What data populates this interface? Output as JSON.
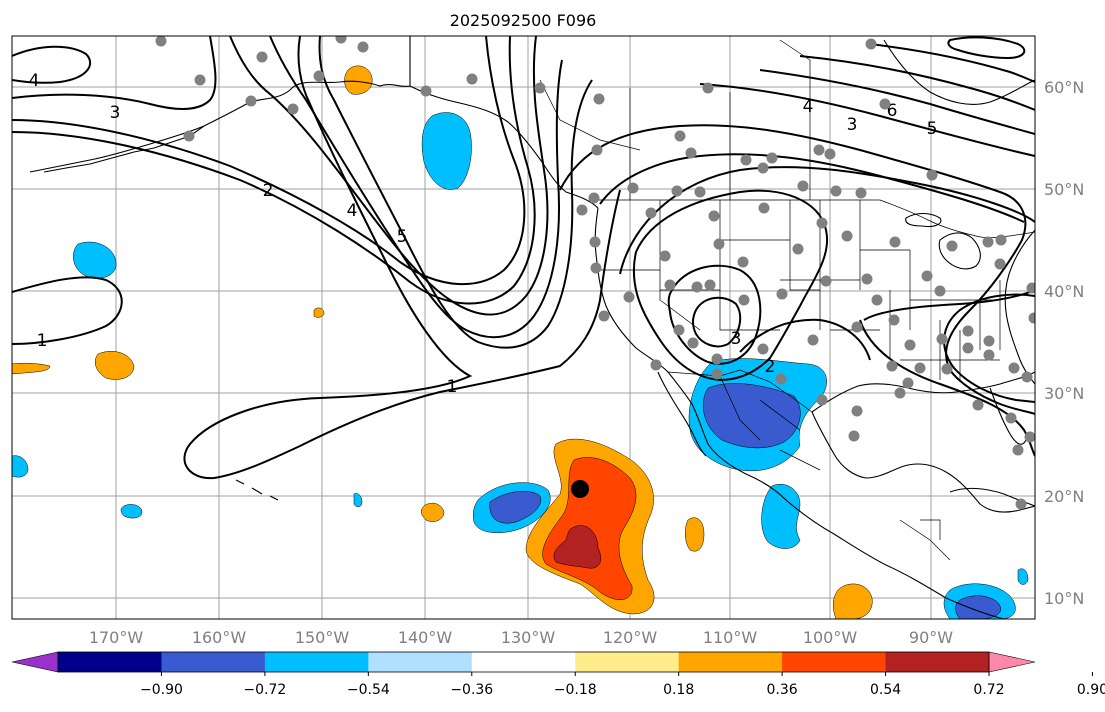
{
  "title": "2025092500 F096",
  "map": {
    "lon_ticks": [
      "170°W",
      "160°W",
      "150°W",
      "140°W",
      "130°W",
      "120°W",
      "110°W",
      "100°W",
      "90°W"
    ],
    "lat_ticks": [
      "60°N",
      "50°N",
      "40°N",
      "30°N",
      "20°N",
      "10°N"
    ],
    "contour_labels": [
      "4",
      "3",
      "2",
      "4",
      "5",
      "1",
      "1",
      "2",
      "3",
      "4",
      "6",
      "3",
      "5"
    ]
  },
  "colorbar": {
    "tick_labels": [
      "−0.90",
      "−0.72",
      "−0.54",
      "−0.36",
      "−0.18",
      "0.18",
      "0.36",
      "0.54",
      "0.72",
      "0.90"
    ],
    "colors": [
      "#9932cc",
      "#00008b",
      "#3a5bd0",
      "#00bfff",
      "#b0e0ff",
      "#ffffff",
      "#ffec8b",
      "#ffa500",
      "#ff4500",
      "#b22222",
      "#ff88aa"
    ]
  },
  "fill_colors": {
    "neg_light": "#00bfff",
    "neg_dark": "#3a5bd0",
    "pos_light": "#ffa500",
    "pos_mid": "#ff4500",
    "pos_dark": "#b22222"
  },
  "station_dot_color": "#808080"
}
